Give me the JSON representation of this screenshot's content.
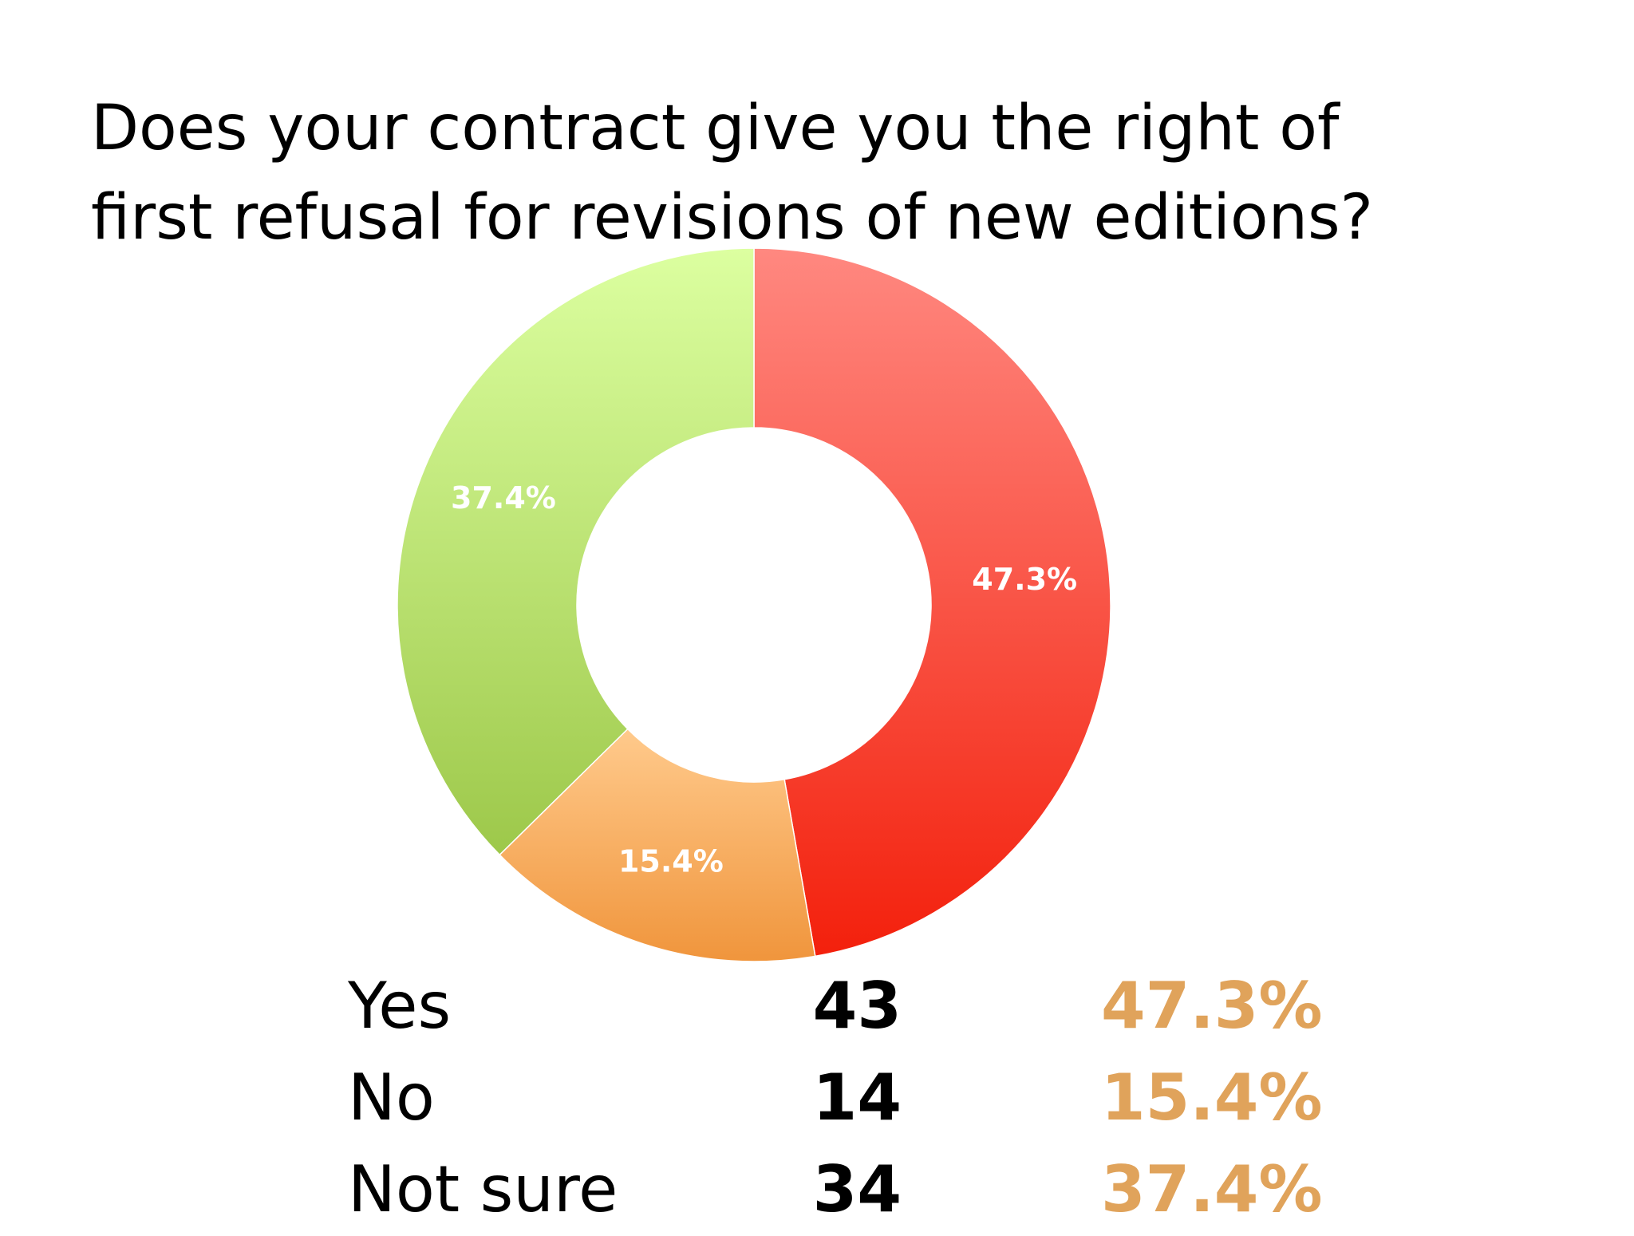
{
  "chart_data": {
    "type": "pie",
    "title": "Does your contract give you the right of first refusal for revisions of new editions?",
    "categories": [
      "Yes",
      "No",
      "Not sure"
    ],
    "values": [
      43,
      14,
      34
    ],
    "percent_labels": [
      "47.3%",
      "15.4%",
      "37.4%"
    ],
    "colors": [
      "#f53a2b",
      "#f5a455",
      "#b6d86c"
    ],
    "gradients": [
      [
        "#ff8880",
        "#f3200c"
      ],
      [
        "#ffca8c",
        "#f0953c"
      ],
      [
        "#dcffa0",
        "#9dc84a"
      ]
    ],
    "legend": false,
    "donut": true
  },
  "table": {
    "rows": [
      {
        "label": "Yes",
        "count": "43",
        "pct": "47.3%"
      },
      {
        "label": "No",
        "count": "14",
        "pct": "15.4%"
      },
      {
        "label": "Not sure",
        "count": "34",
        "pct": "37.4%"
      }
    ],
    "pct_color": "#e0a35b"
  }
}
